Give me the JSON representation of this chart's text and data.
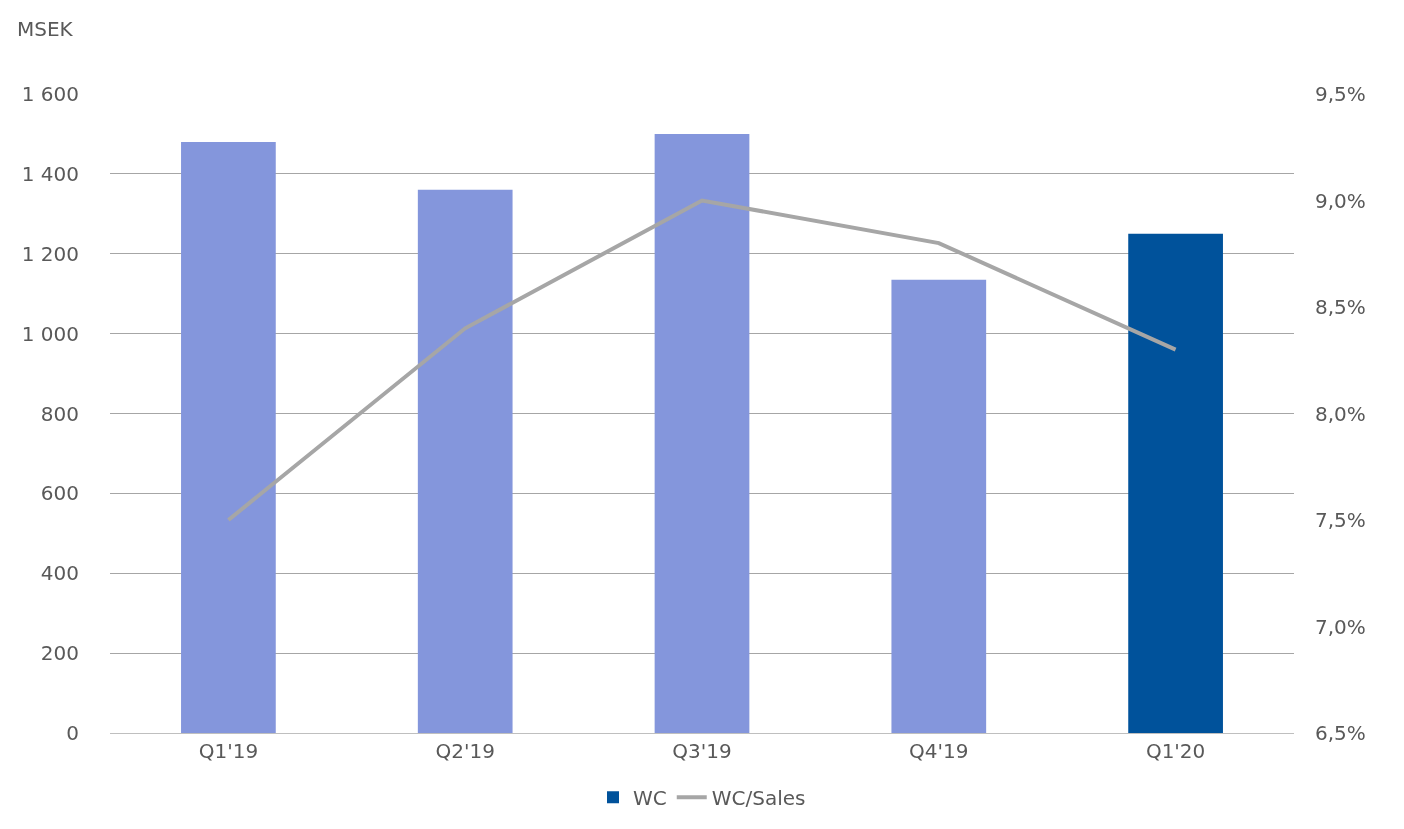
{
  "chart_data": {
    "type": "bar",
    "ylabel": "MSEK",
    "categories": [
      "Q1'19",
      "Q2'19",
      "Q3'19",
      "Q4'19",
      "Q1'20"
    ],
    "series": [
      {
        "name": "WC",
        "color": "#00529b",
        "colors": [
          "#8496dc",
          "#8496dc",
          "#8496dc",
          "#8496dc",
          "#00529b"
        ],
        "values": [
          1480,
          1360,
          1500,
          1135,
          1250
        ]
      },
      {
        "name": "WC/Sales",
        "type": "line",
        "axis": "y2",
        "color": "#a6a6a6",
        "values": [
          7.5,
          8.4,
          9.0,
          8.8,
          8.3
        ]
      }
    ],
    "ylim": [
      0,
      1600
    ],
    "yticks": [
      0,
      200,
      400,
      600,
      800,
      {
        "value": 1000,
        "label": "1 000"
      },
      {
        "value": 1200,
        "label": "1 200"
      },
      {
        "value": 1400,
        "label": "1 400"
      },
      {
        "value": 1600,
        "label": "1 600"
      }
    ],
    "y2lim": [
      6.5,
      9.5
    ],
    "y2ticks": [
      {
        "value": 6.5,
        "label": "6,5%"
      },
      {
        "value": 7.0,
        "label": "7,0%"
      },
      {
        "value": 7.5,
        "label": "7,5%"
      },
      {
        "value": 8.0,
        "label": "8,0%"
      },
      {
        "value": 8.5,
        "label": "8,5%"
      },
      {
        "value": 9.0,
        "label": "9,0%"
      },
      {
        "value": 9.5,
        "label": "9,5%"
      }
    ],
    "grid": "y",
    "legend": "bottom",
    "marker": "none",
    "line_style": "solid"
  }
}
